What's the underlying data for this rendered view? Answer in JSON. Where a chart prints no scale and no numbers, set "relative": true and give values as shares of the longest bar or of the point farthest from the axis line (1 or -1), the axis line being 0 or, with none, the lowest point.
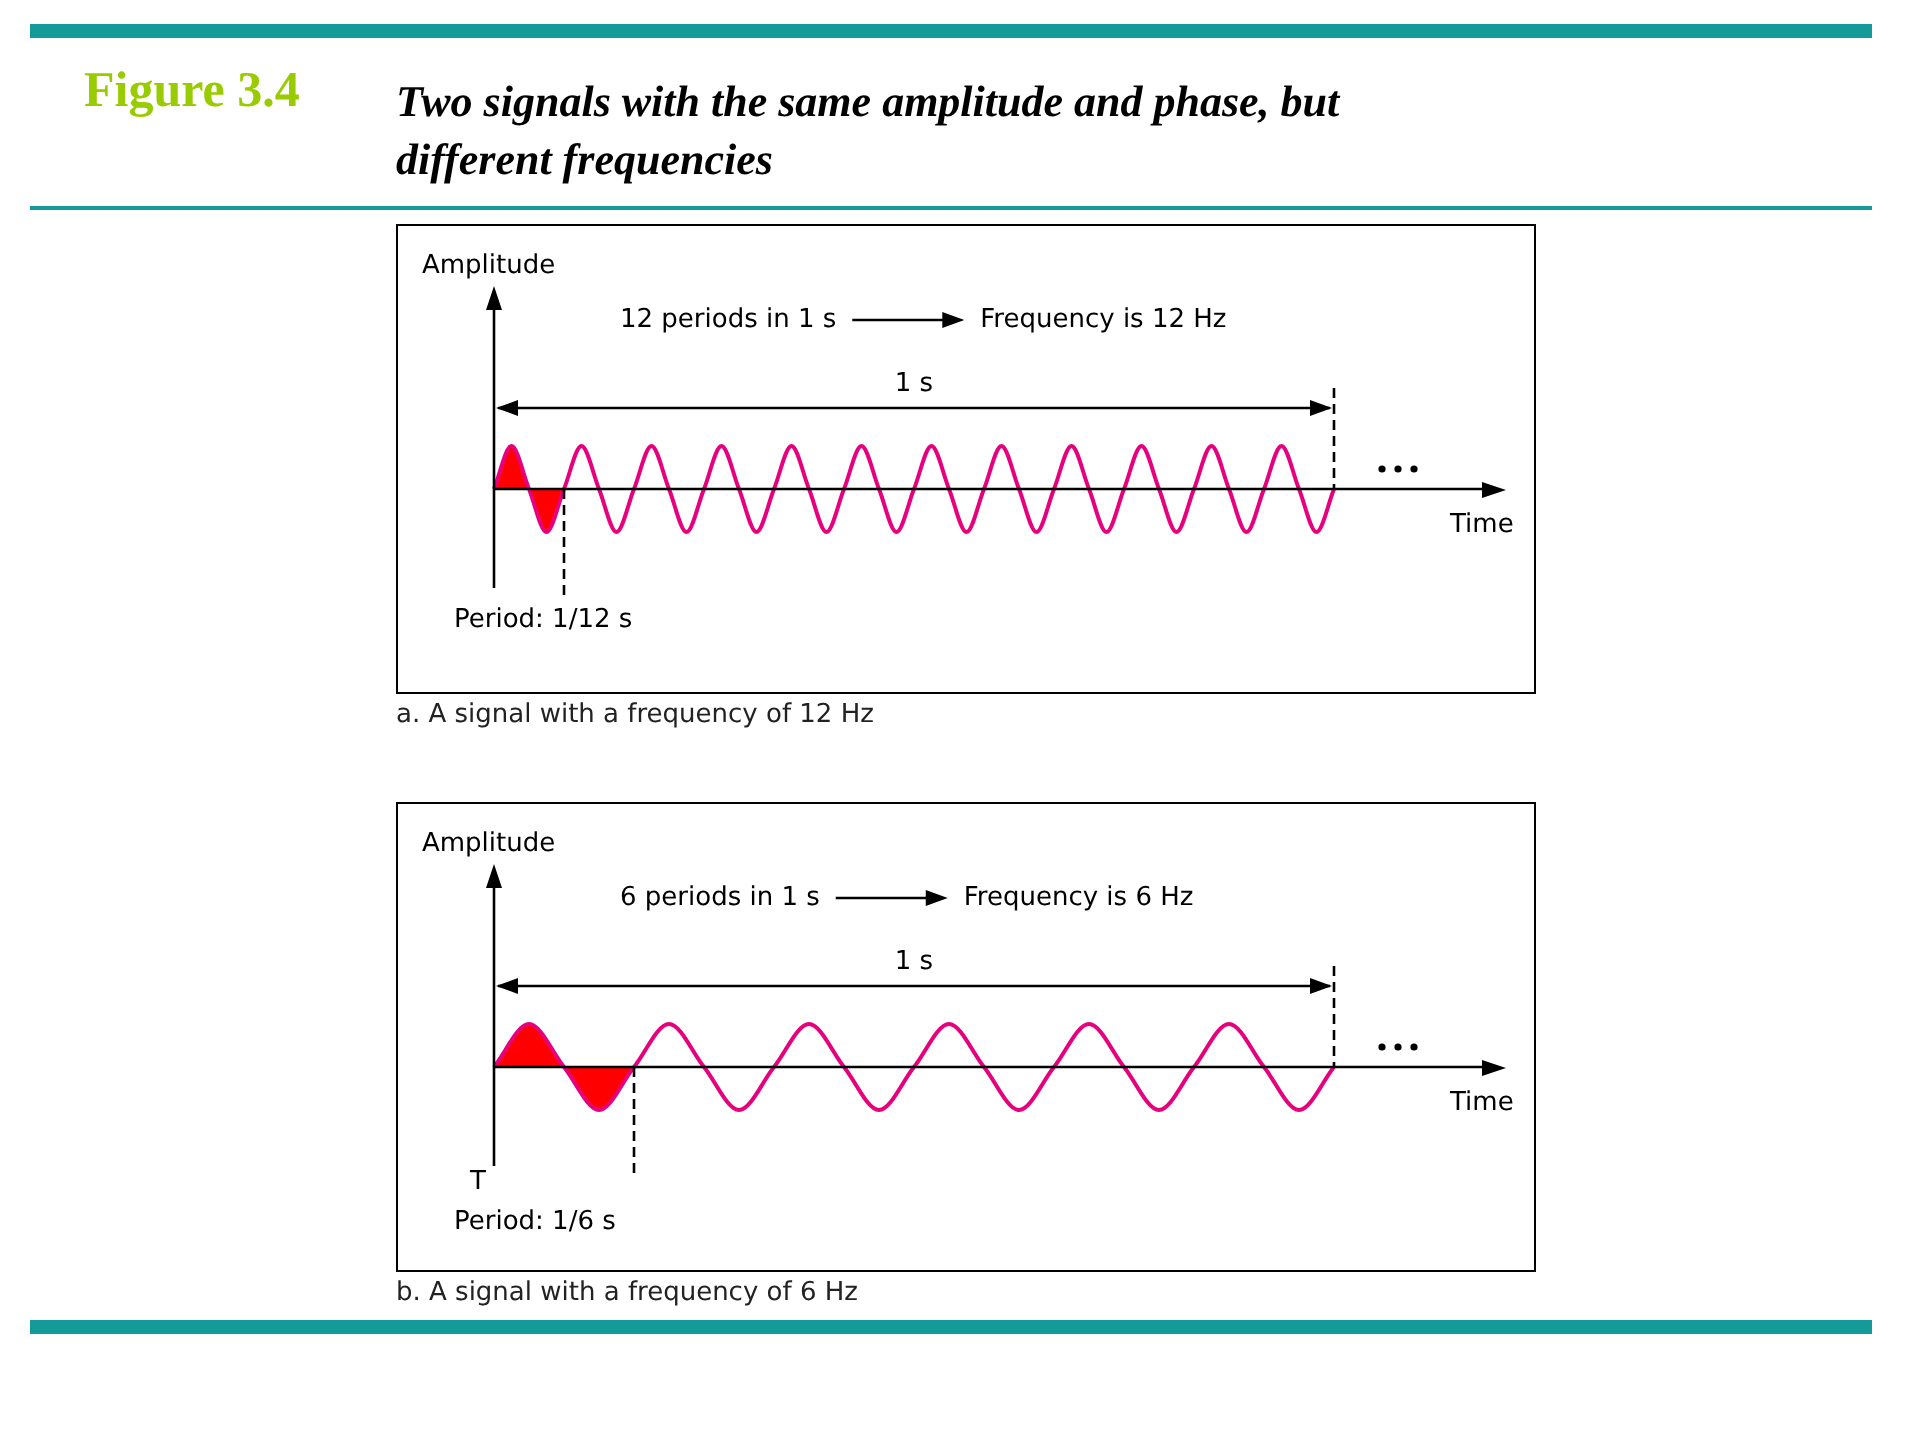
{
  "chart_data": [
    {
      "type": "line",
      "title": "Figure 3.4",
      "subtitle": "Two signals with the same amplitude and phase, but different frequencies",
      "relative": true,
      "xlabel": "Time",
      "ylabel": "Amplitude",
      "categories": [
        null,
        null,
        null,
        null,
        null,
        null,
        null,
        null,
        null,
        null,
        null,
        null,
        null,
        null,
        null,
        null,
        null,
        null,
        null,
        null,
        null,
        null,
        null,
        null,
        null,
        null,
        null,
        null,
        null,
        null,
        null,
        null,
        null,
        null,
        null,
        null,
        null,
        null,
        null,
        null,
        null,
        null,
        null,
        null,
        null,
        null,
        null,
        null,
        null
      ],
      "series": [
        {
          "type": "area",
          "color": "#ff0000",
          "values": [
            0,
            1,
            0,
            -1,
            0,
            null,
            null,
            null,
            null,
            null,
            null,
            null,
            null,
            null,
            null,
            null,
            null,
            null,
            null,
            null,
            null,
            null,
            null,
            null,
            null,
            null,
            null,
            null,
            null,
            null,
            null,
            null,
            null,
            null,
            null,
            null,
            null,
            null,
            null,
            null,
            null,
            null,
            null,
            null,
            null,
            null,
            null,
            null,
            null
          ]
        },
        {
          "type": "line",
          "color": "#e6007e",
          "values": [
            0,
            1,
            0,
            -1,
            0,
            1,
            0,
            -1,
            0,
            1,
            0,
            -1,
            0,
            1,
            0,
            -1,
            0,
            1,
            0,
            -1,
            0,
            1,
            0,
            -1,
            0,
            1,
            0,
            -1,
            0,
            1,
            0,
            -1,
            0,
            1,
            0,
            -1,
            0,
            1,
            0,
            -1,
            0,
            1,
            0,
            -1,
            0,
            1,
            0,
            -1,
            0
          ]
        }
      ],
      "annotations": [
        "12 periods in 1 s",
        "Frequency is 12 Hz",
        "1 s",
        "Period: 1/12 s",
        "a. A signal with a frequency of 12 Hz"
      ]
    },
    {
      "type": "line",
      "relative": true,
      "xlabel": "Time",
      "ylabel": "Amplitude",
      "categories": [
        null,
        null,
        null,
        null,
        null,
        null,
        null,
        null,
        null,
        null,
        null,
        null,
        null,
        null,
        null,
        null,
        null,
        null,
        null,
        null,
        null,
        null,
        null,
        null,
        null
      ],
      "series": [
        {
          "type": "area",
          "color": "#ff0000",
          "values": [
            0,
            1,
            0,
            -1,
            0,
            null,
            null,
            null,
            null,
            null,
            null,
            null,
            null,
            null,
            null,
            null,
            null,
            null,
            null,
            null,
            null,
            null,
            null,
            null,
            null
          ]
        },
        {
          "type": "line",
          "color": "#e6007e",
          "values": [
            0,
            1,
            0,
            -1,
            0,
            1,
            0,
            -1,
            0,
            1,
            0,
            -1,
            0,
            1,
            0,
            -1,
            0,
            1,
            0,
            -1,
            0,
            1,
            0,
            -1,
            0
          ]
        }
      ],
      "annotations": [
        "6 periods in 1 s",
        "Frequency is 6 Hz",
        "1 s",
        "T",
        "Period: 1/6 s",
        "b. A signal with a frequency of 6 Hz"
      ]
    }
  ]
}
